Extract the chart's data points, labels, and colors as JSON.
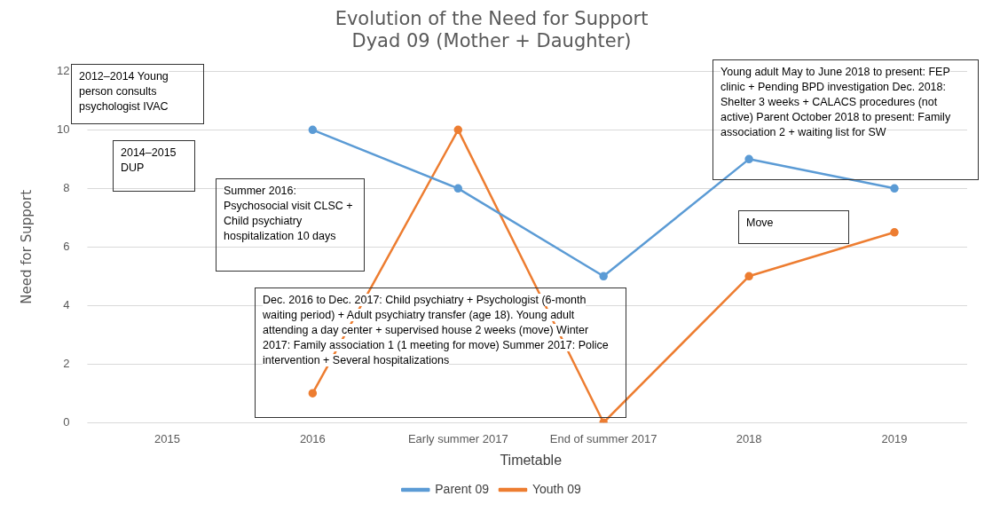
{
  "chart_data": {
    "type": "line",
    "title": "Evolution of the Need for Support",
    "subtitle": "Dyad 09 (Mother + Daughter)",
    "xlabel": "Timetable",
    "ylabel": "Need for Support",
    "categories": [
      "2015",
      "2016",
      "Early summer 2017",
      "End of summer 2017",
      "2018",
      "2019"
    ],
    "series": [
      {
        "name": "Parent 09",
        "color": "#5b9bd5",
        "values": [
          null,
          10,
          8,
          5,
          9,
          8
        ]
      },
      {
        "name": "Youth 09",
        "color": "#ed7d31",
        "values": [
          null,
          1,
          10,
          0,
          5,
          6.5
        ]
      }
    ],
    "ylim": [
      0,
      12
    ],
    "yticks": [
      0,
      2,
      4,
      6,
      8,
      10,
      12
    ],
    "grid": "y",
    "legend": "bottom",
    "marker": "circle",
    "line_style": "solid",
    "annotations": [
      "2012–2014 Young person consults psychologist IVAC",
      "2014–2015 DUP",
      "Summer 2016: Psychosocial visit CLSC + Child psychiatry hospitalization 10 days",
      "Dec. 2016 to Dec. 2017:  Child psychiatry + Psychologist (6-month waiting period) + Adult psychiatry transfer (age 18). Young adult attending a day center + supervised house 2 weeks (move) Winter 2017: Family association 1 (1 meeting for move) Summer 2017: Police intervention + Several hospitalizations",
      "Young adult May to June 2018 to present: FEP clinic + Pending BPD investigation Dec.  2018: Shelter 3 weeks + CALACS procedures (not active) Parent October 2018 to present: Family association 2 + waiting list for SW",
      "Move"
    ]
  }
}
